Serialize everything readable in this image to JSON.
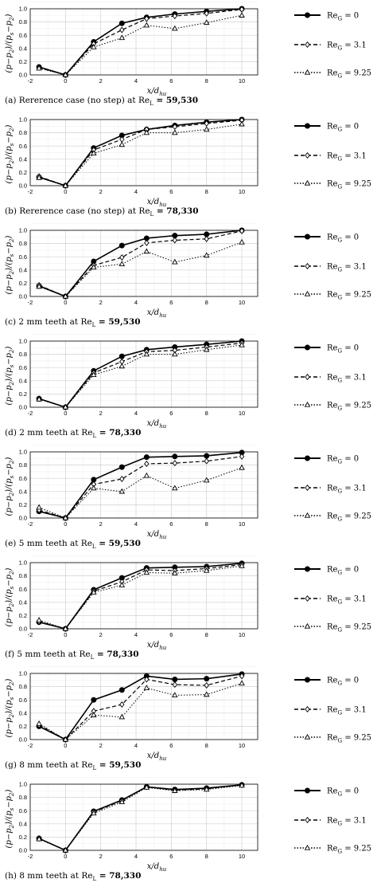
{
  "chart_data": [
    {
      "type": "line",
      "caption": "(a) Rererence case (no step) at Re",
      "caption_sub": "L",
      "caption_tail": " = 59,530",
      "x": [
        -1.5,
        0,
        1.6,
        3.2,
        4.6,
        6.2,
        8,
        10
      ],
      "series": [
        {
          "name": "Re_G = 0",
          "values": [
            0.12,
            0.0,
            0.5,
            0.78,
            0.87,
            0.92,
            0.96,
            1.0
          ]
        },
        {
          "name": "Re_G = 3.1",
          "values": [
            0.11,
            0.0,
            0.47,
            0.68,
            0.85,
            0.89,
            0.93,
            0.99
          ]
        },
        {
          "name": "Re_G = 9.25",
          "values": [
            0.1,
            0.0,
            0.42,
            0.56,
            0.75,
            0.7,
            0.79,
            0.9
          ]
        }
      ]
    },
    {
      "type": "line",
      "caption": "(b) Rererence case (no step) at Re",
      "caption_sub": "L",
      "caption_tail": " = 78,330",
      "x": [
        -1.5,
        0,
        1.6,
        3.2,
        4.6,
        6.2,
        8,
        10
      ],
      "series": [
        {
          "name": "Re_G = 0",
          "values": [
            0.13,
            0.0,
            0.57,
            0.76,
            0.85,
            0.91,
            0.96,
            1.0
          ]
        },
        {
          "name": "Re_G = 3.1",
          "values": [
            0.14,
            0.0,
            0.54,
            0.7,
            0.85,
            0.89,
            0.94,
            0.99
          ]
        },
        {
          "name": "Re_G = 9.25",
          "values": [
            0.12,
            0.0,
            0.49,
            0.62,
            0.8,
            0.8,
            0.85,
            0.93
          ]
        }
      ]
    },
    {
      "type": "line",
      "caption": "(c) 2 mm teeth at Re",
      "caption_sub": "L",
      "caption_tail": " = 59,530",
      "x": [
        -1.5,
        0,
        1.6,
        3.2,
        4.6,
        6.2,
        8,
        10
      ],
      "series": [
        {
          "name": "Re_G = 0",
          "values": [
            0.16,
            0.0,
            0.53,
            0.77,
            0.88,
            0.92,
            0.94,
            1.0
          ]
        },
        {
          "name": "Re_G = 3.1",
          "values": [
            0.17,
            0.0,
            0.47,
            0.59,
            0.81,
            0.85,
            0.87,
            0.99
          ]
        },
        {
          "name": "Re_G = 9.25",
          "values": [
            0.15,
            0.0,
            0.44,
            0.49,
            0.68,
            0.52,
            0.62,
            0.82
          ]
        }
      ]
    },
    {
      "type": "line",
      "caption": "(d) 2 mm teeth at Re",
      "caption_sub": "L",
      "caption_tail": " = 78,330",
      "x": [
        -1.5,
        0,
        1.6,
        3.2,
        4.6,
        6.2,
        8,
        10
      ],
      "series": [
        {
          "name": "Re_G = 0",
          "values": [
            0.13,
            0.0,
            0.55,
            0.77,
            0.87,
            0.91,
            0.95,
            1.0
          ]
        },
        {
          "name": "Re_G = 3.1",
          "values": [
            0.13,
            0.0,
            0.52,
            0.69,
            0.84,
            0.86,
            0.91,
            0.97
          ]
        },
        {
          "name": "Re_G = 9.25",
          "values": [
            0.12,
            0.0,
            0.49,
            0.62,
            0.8,
            0.8,
            0.87,
            0.94
          ]
        }
      ]
    },
    {
      "type": "line",
      "caption": "(e) 5 mm teeth at Re",
      "caption_sub": "L",
      "caption_tail": " = 59,530",
      "x": [
        -1.5,
        0,
        1.6,
        3.2,
        4.6,
        6.2,
        8,
        10
      ],
      "series": [
        {
          "name": "Re_G = 0",
          "values": [
            0.1,
            0.0,
            0.58,
            0.77,
            0.92,
            0.93,
            0.94,
            0.99
          ]
        },
        {
          "name": "Re_G = 3.1",
          "values": [
            0.12,
            0.0,
            0.51,
            0.59,
            0.82,
            0.83,
            0.86,
            0.93
          ]
        },
        {
          "name": "Re_G = 9.25",
          "values": [
            0.16,
            0.0,
            0.45,
            0.4,
            0.64,
            0.45,
            0.57,
            0.76
          ]
        }
      ]
    },
    {
      "type": "line",
      "caption": "(f) 5 mm teeth at Re",
      "caption_sub": "L",
      "caption_tail": " = 78,330",
      "x": [
        -1.5,
        0,
        1.6,
        3.2,
        4.6,
        6.2,
        8,
        10
      ],
      "series": [
        {
          "name": "Re_G = 0",
          "values": [
            0.1,
            0.0,
            0.59,
            0.77,
            0.92,
            0.93,
            0.94,
            0.99
          ]
        },
        {
          "name": "Re_G = 3.1",
          "values": [
            0.11,
            0.0,
            0.57,
            0.71,
            0.89,
            0.88,
            0.91,
            0.97
          ]
        },
        {
          "name": "Re_G = 9.25",
          "values": [
            0.13,
            0.0,
            0.55,
            0.66,
            0.85,
            0.84,
            0.88,
            0.95
          ]
        }
      ]
    },
    {
      "type": "line",
      "caption": "(g) 8 mm teeth at Re",
      "caption_sub": "L",
      "caption_tail": " = 59,530",
      "x": [
        -1.5,
        0,
        1.6,
        3.2,
        4.6,
        6.2,
        8,
        10
      ],
      "series": [
        {
          "name": "Re_G = 0",
          "values": [
            0.2,
            0.0,
            0.6,
            0.75,
            0.96,
            0.91,
            0.92,
            0.99
          ]
        },
        {
          "name": "Re_G = 3.1",
          "values": [
            0.22,
            0.0,
            0.43,
            0.53,
            0.91,
            0.83,
            0.82,
            0.96
          ]
        },
        {
          "name": "Re_G = 9.25",
          "values": [
            0.24,
            0.0,
            0.37,
            0.34,
            0.78,
            0.67,
            0.68,
            0.85
          ]
        }
      ]
    },
    {
      "type": "line",
      "caption": "(h) 8 mm teeth at Re",
      "caption_sub": "L",
      "caption_tail": " = 78,330",
      "x": [
        -1.5,
        0,
        1.6,
        3.2,
        4.6,
        6.2,
        8,
        10
      ],
      "series": [
        {
          "name": "Re_G = 0",
          "values": [
            0.18,
            0.0,
            0.59,
            0.76,
            0.96,
            0.92,
            0.94,
            0.99
          ]
        },
        {
          "name": "Re_G = 3.1",
          "values": [
            0.18,
            0.0,
            0.58,
            0.75,
            0.96,
            0.91,
            0.93,
            0.99
          ]
        },
        {
          "name": "Re_G = 9.25",
          "values": [
            0.17,
            0.0,
            0.56,
            0.73,
            0.95,
            0.9,
            0.92,
            0.98
          ]
        }
      ]
    }
  ],
  "axes": {
    "xlim": [
      -2,
      10.9
    ],
    "ylim": [
      0,
      1
    ],
    "xticks": [
      "-2",
      "0",
      "2",
      "4",
      "6",
      "8",
      "10"
    ],
    "yticks": [
      "0.0",
      "0.2",
      "0.4",
      "0.6",
      "0.8",
      "1.0"
    ],
    "xlabel": "x/d",
    "xlabel_sub": "hu",
    "ylabel": "(p−p",
    "ylabel_sub1": "2",
    "ylabel_mid": ")/(p",
    "ylabel_sub2": "s",
    "ylabel_mid2": "−p",
    "ylabel_sub3": "2",
    "ylabel_end": ")",
    "grid": true
  },
  "legend": {
    "prefix": "Re",
    "sub": "G",
    "labels": [
      " = 0",
      " = 3.1",
      " = 9.25"
    ]
  },
  "colors": {
    "line": "#000000",
    "grid": "#d0d0d0"
  }
}
